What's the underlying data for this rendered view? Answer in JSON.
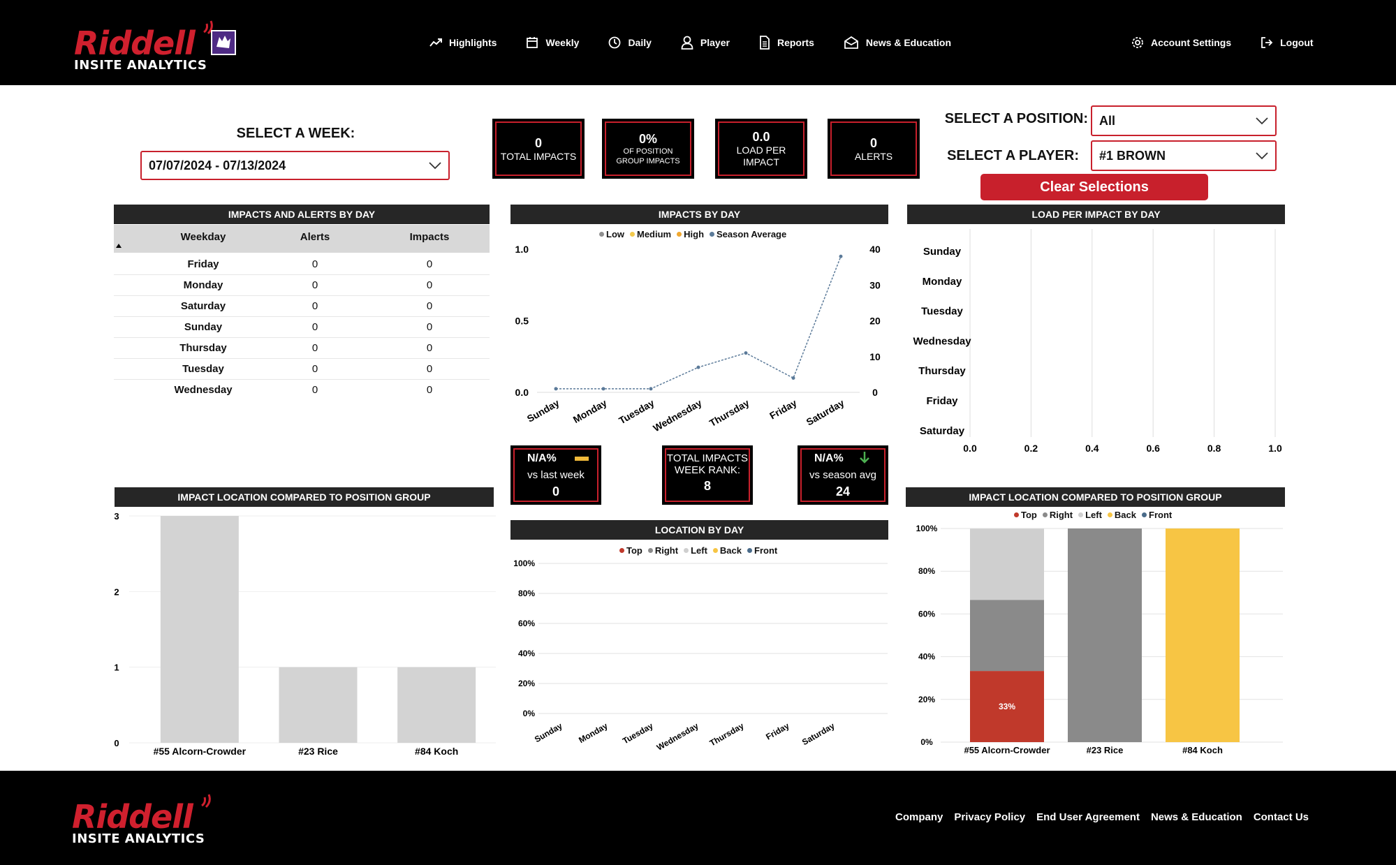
{
  "brand": {
    "name": "Riddell",
    "subtitle": "INSITE ANALYTICS"
  },
  "nav": {
    "items": [
      {
        "label": "Highlights",
        "icon": "trend-up-icon"
      },
      {
        "label": "Weekly",
        "icon": "calendar-icon"
      },
      {
        "label": "Daily",
        "icon": "clock-icon"
      },
      {
        "label": "Player",
        "icon": "user-icon"
      },
      {
        "label": "Reports",
        "icon": "document-icon"
      },
      {
        "label": "News & Education",
        "icon": "mail-icon"
      }
    ],
    "account_settings": "Account Settings",
    "logout": "Logout"
  },
  "filters": {
    "week_label": "SELECT A WEEK:",
    "week_value": "07/07/2024 - 07/13/2024",
    "position_label": "SELECT A POSITION:",
    "position_value": "All",
    "player_label": "SELECT A PLAYER:",
    "player_value": "#1 BROWN",
    "clear_label": "Clear Selections"
  },
  "kpis": {
    "total_impacts": {
      "value": "0",
      "label": "TOTAL IMPACTS"
    },
    "position_group": {
      "value": "0%",
      "label1": "OF POSITION",
      "label2": "GROUP IMPACTS"
    },
    "load_per_impact": {
      "value": "0.0",
      "label1": "LOAD PER",
      "label2": "IMPACT"
    },
    "alerts": {
      "value": "0",
      "label": "ALERTS"
    }
  },
  "impacts_alerts_table": {
    "title": "IMPACTS AND ALERTS BY DAY",
    "columns": [
      "Weekday",
      "Alerts",
      "Impacts"
    ],
    "rows": [
      {
        "day": "Friday",
        "alerts": "0",
        "impacts": "0"
      },
      {
        "day": "Monday",
        "alerts": "0",
        "impacts": "0"
      },
      {
        "day": "Saturday",
        "alerts": "0",
        "impacts": "0"
      },
      {
        "day": "Sunday",
        "alerts": "0",
        "impacts": "0"
      },
      {
        "day": "Thursday",
        "alerts": "0",
        "impacts": "0"
      },
      {
        "day": "Tuesday",
        "alerts": "0",
        "impacts": "0"
      },
      {
        "day": "Wednesday",
        "alerts": "0",
        "impacts": "0"
      }
    ]
  },
  "cards": {
    "vs_last_week": {
      "pct": "N/A%",
      "label": "vs last week",
      "value": "0"
    },
    "week_rank": {
      "label1": "TOTAL IMPACTS",
      "label2": "WEEK RANK:",
      "value": "8"
    },
    "vs_season": {
      "pct": "N/A%",
      "label": "vs season avg",
      "value": "24"
    }
  },
  "colors": {
    "accent": "#c8202c",
    "low": "#8e8e8e",
    "medium": "#f2c94c",
    "high": "#f0a830",
    "season": "#5b7a99",
    "top": "#c0392b",
    "right": "#8a8a8a",
    "left": "#cfcfcf",
    "back": "#f7c544",
    "front": "#4a6b8a"
  },
  "footer": {
    "links": [
      "Company",
      "Privacy Policy",
      "End User Agreement",
      "News & Education",
      "Contact Us"
    ]
  },
  "chart_data": [
    {
      "id": "impacts_by_day",
      "type": "line",
      "title": "IMPACTS BY DAY",
      "legend": [
        "Low",
        "Medium",
        "High",
        "Season Average"
      ],
      "categories": [
        "Sunday",
        "Monday",
        "Tuesday",
        "Wednesday",
        "Thursday",
        "Friday",
        "Saturday"
      ],
      "series": [
        {
          "name": "Low",
          "values": [
            0,
            0,
            0,
            0,
            0,
            0,
            0
          ]
        },
        {
          "name": "Medium",
          "values": [
            0,
            0,
            0,
            0,
            0,
            0,
            0
          ]
        },
        {
          "name": "High",
          "values": [
            0,
            0,
            0,
            0,
            0,
            0,
            0
          ]
        },
        {
          "name": "Season Average",
          "axis": "right",
          "values": [
            1,
            1,
            1,
            7,
            11,
            4,
            38
          ]
        }
      ],
      "ylim": [
        0,
        1
      ],
      "y_ticks": [
        "0.0",
        "0.5",
        "1.0"
      ],
      "y2lim": [
        0,
        40
      ],
      "y2_ticks": [
        "0",
        "10",
        "20",
        "30",
        "40"
      ]
    },
    {
      "id": "load_per_impact_by_day",
      "type": "bar",
      "title": "LOAD PER IMPACT BY DAY",
      "orientation": "horizontal",
      "categories": [
        "Sunday",
        "Monday",
        "Tuesday",
        "Wednesday",
        "Thursday",
        "Friday",
        "Saturday"
      ],
      "values": [
        0,
        0,
        0,
        0,
        0,
        0,
        0
      ],
      "xlim": [
        0,
        1
      ],
      "x_ticks": [
        "0.0",
        "0.2",
        "0.4",
        "0.6",
        "0.8",
        "1.0"
      ]
    },
    {
      "id": "impact_location_left",
      "type": "bar",
      "title": "IMPACT LOCATION COMPARED TO POSITION GROUP",
      "categories": [
        "#55 Alcorn-Crowder",
        "#23 Rice",
        "#84 Koch"
      ],
      "values": [
        3,
        1,
        1
      ],
      "ylim": [
        0,
        3
      ],
      "y_ticks": [
        "0",
        "1",
        "2",
        "3"
      ]
    },
    {
      "id": "location_by_day",
      "type": "bar",
      "title": "LOCATION BY DAY",
      "legend": [
        "Top",
        "Right",
        "Left",
        "Back",
        "Front"
      ],
      "categories": [
        "Sunday",
        "Monday",
        "Tuesday",
        "Wednesday",
        "Thursday",
        "Friday",
        "Saturday"
      ],
      "values": [
        0,
        0,
        0,
        0,
        0,
        0,
        0
      ],
      "y_ticks": [
        "0%",
        "20%",
        "40%",
        "60%",
        "80%",
        "100%"
      ]
    },
    {
      "id": "impact_location_right",
      "type": "bar",
      "stacked": true,
      "title": "IMPACT LOCATION COMPARED TO POSITION GROUP",
      "legend": [
        "Top",
        "Right",
        "Left",
        "Back",
        "Front"
      ],
      "categories": [
        "#55 Alcorn-Crowder",
        "#23 Rice",
        "#84 Koch"
      ],
      "series": [
        {
          "name": "Top",
          "values": [
            33.3,
            0,
            0
          ]
        },
        {
          "name": "Right",
          "values": [
            33.3,
            100,
            0
          ]
        },
        {
          "name": "Left",
          "values": [
            33.3,
            0,
            0
          ]
        },
        {
          "name": "Back",
          "values": [
            0,
            0,
            100
          ]
        },
        {
          "name": "Front",
          "values": [
            0,
            0,
            0
          ]
        }
      ],
      "data_labels": [
        "33%"
      ],
      "y_ticks": [
        "0%",
        "20%",
        "40%",
        "60%",
        "80%",
        "100%"
      ]
    }
  ]
}
